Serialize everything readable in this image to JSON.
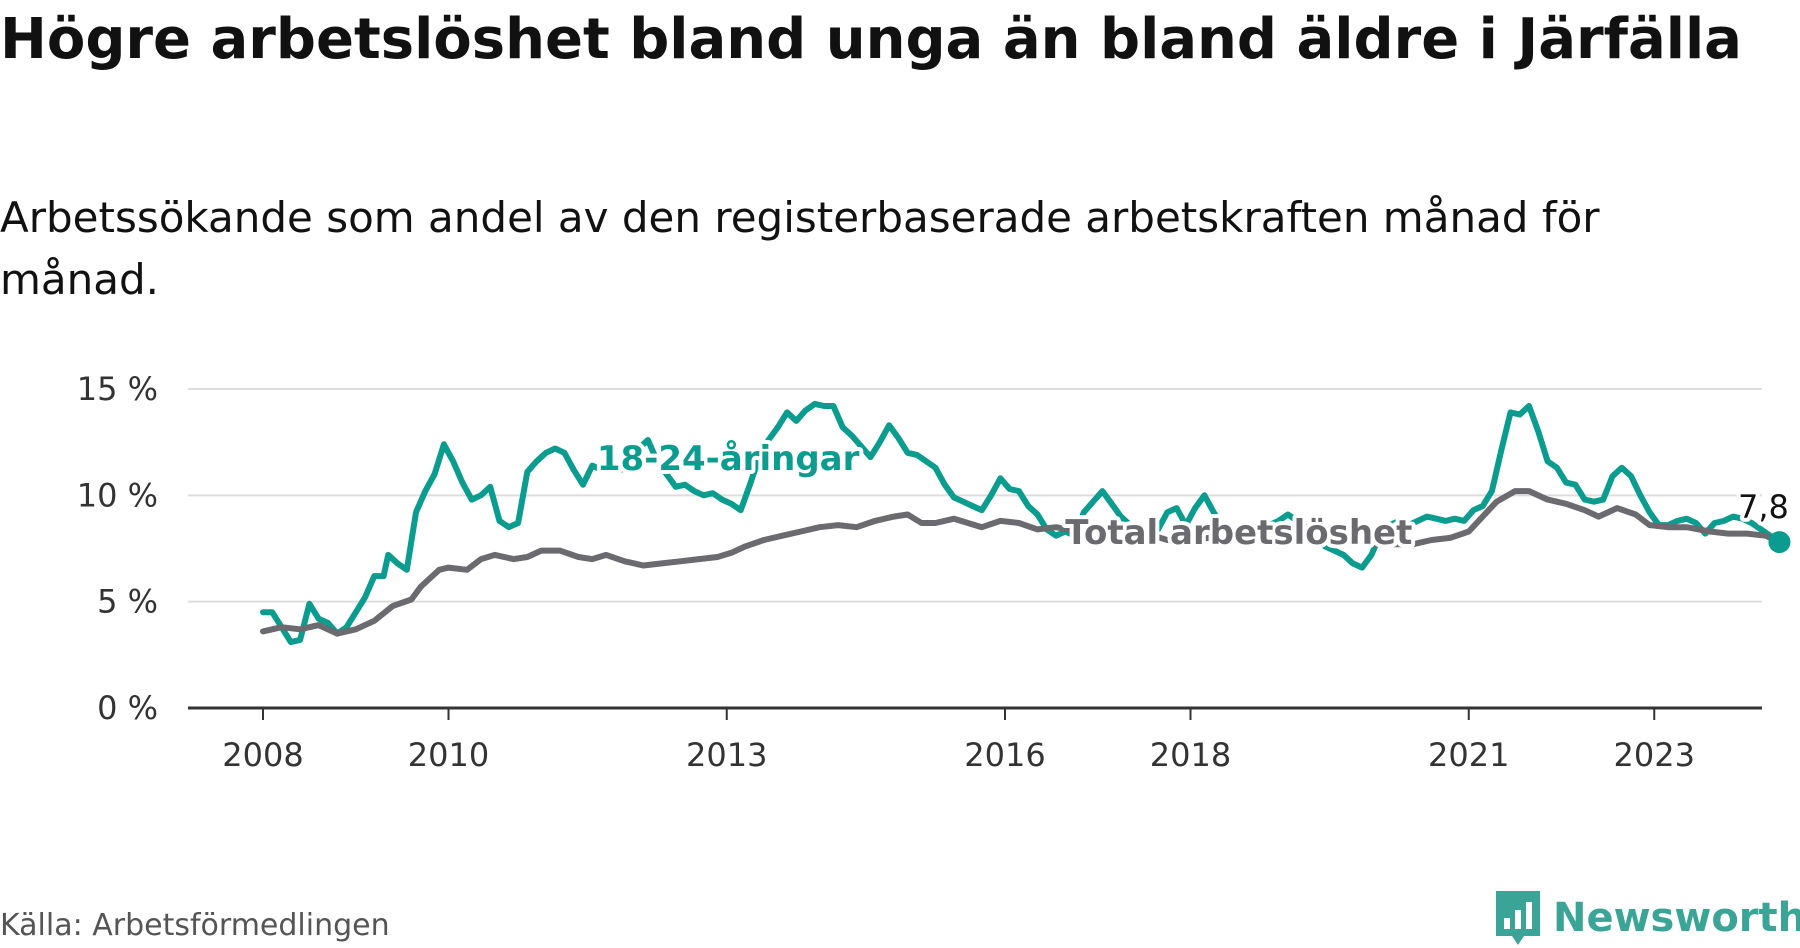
{
  "title": "Högre arbetslöshet bland unga än bland äldre i Järfälla",
  "subtitle": "Arbetssökande som andel av den registerbaserade arbetskraften månad för månad.",
  "source": "Källa: Arbetsförmedlingen",
  "brand": {
    "name": "Newsworthy",
    "icon": "newsworthy-bar-chart-icon",
    "color": "#3aa596"
  },
  "chart_data": {
    "type": "line",
    "title": "Högre arbetslöshet bland unga än bland äldre i Järfälla",
    "subtitle": "Arbetssökande som andel av den registerbaserade arbetskraften månad för månad.",
    "xlabel": "",
    "ylabel": "",
    "xlim": [
      2008,
      2024.5
    ],
    "ylim": [
      0,
      15
    ],
    "y_ticks": [
      0,
      5,
      10,
      15
    ],
    "y_tick_labels": [
      "0 %",
      "5 %",
      "10 %",
      "15 %"
    ],
    "x_ticks": [
      2008,
      2010,
      2013,
      2016,
      2018,
      2021,
      2023
    ],
    "x_tick_labels": [
      "2008",
      "2010",
      "2013",
      "2016",
      "2018",
      "2021",
      "2023"
    ],
    "grid": true,
    "series": [
      {
        "name": "18-24-åringar",
        "color": "#0a9d8f",
        "label_x": 2011.6,
        "label_y": 11.2,
        "points": [
          [
            2008,
            4.5
          ],
          [
            2008.1,
            4.5
          ],
          [
            2008.2,
            3.8
          ],
          [
            2008.3,
            3.1
          ],
          [
            2008.4,
            3.2
          ],
          [
            2008.5,
            4.9
          ],
          [
            2008.6,
            4.2
          ],
          [
            2008.7,
            4.0
          ],
          [
            2008.8,
            3.5
          ],
          [
            2008.9,
            3.8
          ],
          [
            2009.0,
            4.5
          ],
          [
            2009.1,
            5.2
          ],
          [
            2009.2,
            6.2
          ],
          [
            2009.3,
            6.2
          ],
          [
            2009.35,
            7.2
          ],
          [
            2009.45,
            6.8
          ],
          [
            2009.55,
            6.5
          ],
          [
            2009.65,
            9.2
          ],
          [
            2009.75,
            10.2
          ],
          [
            2009.85,
            11.0
          ],
          [
            2009.95,
            12.4
          ],
          [
            2010.05,
            11.6
          ],
          [
            2010.15,
            10.6
          ],
          [
            2010.25,
            9.8
          ],
          [
            2010.35,
            10.0
          ],
          [
            2010.45,
            10.4
          ],
          [
            2010.55,
            8.8
          ],
          [
            2010.65,
            8.5
          ],
          [
            2010.75,
            8.7
          ],
          [
            2010.85,
            11.1
          ],
          [
            2010.95,
            11.6
          ],
          [
            2011.05,
            12.0
          ],
          [
            2011.15,
            12.2
          ],
          [
            2011.25,
            12.0
          ],
          [
            2011.35,
            11.2
          ],
          [
            2011.45,
            10.5
          ],
          [
            2011.55,
            11.4
          ],
          [
            2011.65,
            11.2
          ],
          [
            2011.75,
            11.4
          ],
          [
            2011.85,
            11.2
          ],
          [
            2011.95,
            11.3
          ],
          [
            2012.05,
            12.2
          ],
          [
            2012.15,
            12.6
          ],
          [
            2012.25,
            11.6
          ],
          [
            2012.35,
            11.0
          ],
          [
            2012.45,
            10.4
          ],
          [
            2012.55,
            10.5
          ],
          [
            2012.65,
            10.2
          ],
          [
            2012.75,
            10.0
          ],
          [
            2012.85,
            10.1
          ],
          [
            2012.95,
            9.8
          ],
          [
            2013.05,
            9.6
          ],
          [
            2013.15,
            9.3
          ],
          [
            2013.25,
            10.5
          ],
          [
            2013.35,
            11.8
          ],
          [
            2013.45,
            12.6
          ],
          [
            2013.55,
            13.2
          ],
          [
            2013.65,
            13.9
          ],
          [
            2013.75,
            13.5
          ],
          [
            2013.85,
            14.0
          ],
          [
            2013.95,
            14.3
          ],
          [
            2014.05,
            14.2
          ],
          [
            2014.15,
            14.2
          ],
          [
            2014.25,
            13.2
          ],
          [
            2014.35,
            12.8
          ],
          [
            2014.45,
            12.3
          ],
          [
            2014.55,
            11.8
          ],
          [
            2014.65,
            12.5
          ],
          [
            2014.75,
            13.3
          ],
          [
            2014.85,
            12.7
          ],
          [
            2014.95,
            12.0
          ],
          [
            2015.05,
            11.9
          ],
          [
            2015.15,
            11.6
          ],
          [
            2015.25,
            11.3
          ],
          [
            2015.35,
            10.5
          ],
          [
            2015.45,
            9.9
          ],
          [
            2015.55,
            9.7
          ],
          [
            2015.65,
            9.5
          ],
          [
            2015.75,
            9.3
          ],
          [
            2015.85,
            10.0
          ],
          [
            2015.95,
            10.8
          ],
          [
            2016.05,
            10.3
          ],
          [
            2016.15,
            10.2
          ],
          [
            2016.25,
            9.5
          ],
          [
            2016.35,
            9.1
          ],
          [
            2016.45,
            8.4
          ],
          [
            2016.55,
            8.1
          ],
          [
            2016.65,
            8.3
          ],
          [
            2016.75,
            8.1
          ],
          [
            2016.85,
            9.2
          ],
          [
            2016.95,
            9.7
          ],
          [
            2017.05,
            10.2
          ],
          [
            2017.15,
            9.6
          ],
          [
            2017.25,
            9.0
          ],
          [
            2017.35,
            8.6
          ],
          [
            2017.45,
            8.6
          ],
          [
            2017.55,
            8.3
          ],
          [
            2017.65,
            8.4
          ],
          [
            2017.75,
            9.2
          ],
          [
            2017.85,
            9.4
          ],
          [
            2017.95,
            8.6
          ],
          [
            2018.05,
            9.4
          ],
          [
            2018.15,
            10.0
          ],
          [
            2018.25,
            9.2
          ],
          [
            2018.35,
            8.5
          ],
          [
            2018.45,
            8.2
          ],
          [
            2018.55,
            8.3
          ],
          [
            2018.65,
            8.0
          ],
          [
            2018.75,
            8.2
          ],
          [
            2018.85,
            8.6
          ],
          [
            2018.95,
            8.8
          ],
          [
            2019.05,
            9.1
          ],
          [
            2019.15,
            8.8
          ],
          [
            2019.25,
            8.5
          ],
          [
            2019.35,
            8.0
          ],
          [
            2019.45,
            7.6
          ],
          [
            2019.55,
            7.4
          ],
          [
            2019.65,
            7.2
          ],
          [
            2019.75,
            6.8
          ],
          [
            2019.85,
            6.6
          ],
          [
            2019.95,
            7.2
          ],
          [
            2020.05,
            8.2
          ],
          [
            2020.15,
            8.6
          ],
          [
            2020.25,
            8.8
          ],
          [
            2020.35,
            8.6
          ],
          [
            2020.45,
            8.8
          ],
          [
            2020.55,
            9.0
          ],
          [
            2020.65,
            8.9
          ],
          [
            2020.75,
            8.8
          ],
          [
            2020.85,
            8.9
          ],
          [
            2020.95,
            8.8
          ],
          [
            2021.05,
            9.3
          ],
          [
            2021.15,
            9.5
          ],
          [
            2021.25,
            10.2
          ],
          [
            2021.35,
            12.1
          ],
          [
            2021.45,
            13.9
          ],
          [
            2021.55,
            13.8
          ],
          [
            2021.65,
            14.2
          ],
          [
            2021.75,
            13.0
          ],
          [
            2021.85,
            11.6
          ],
          [
            2021.95,
            11.3
          ],
          [
            2022.05,
            10.6
          ],
          [
            2022.15,
            10.5
          ],
          [
            2022.25,
            9.8
          ],
          [
            2022.35,
            9.7
          ],
          [
            2022.45,
            9.8
          ],
          [
            2022.55,
            10.9
          ],
          [
            2022.65,
            11.3
          ],
          [
            2022.75,
            10.9
          ],
          [
            2022.85,
            10.0
          ],
          [
            2022.95,
            9.2
          ],
          [
            2023.05,
            8.6
          ],
          [
            2023.15,
            8.6
          ],
          [
            2023.25,
            8.8
          ],
          [
            2023.35,
            8.9
          ],
          [
            2023.45,
            8.7
          ],
          [
            2023.55,
            8.2
          ],
          [
            2023.65,
            8.7
          ],
          [
            2023.75,
            8.8
          ],
          [
            2023.85,
            9.0
          ],
          [
            2023.95,
            8.9
          ],
          [
            2024.05,
            8.7
          ],
          [
            2024.15,
            8.4
          ],
          [
            2024.25,
            8.1
          ],
          [
            2024.35,
            7.8
          ]
        ]
      },
      {
        "name": "Total arbetslöshet",
        "color": "#6a6a6f",
        "label_x": 2016.65,
        "label_y": 7.7,
        "points": [
          [
            2008,
            3.6
          ],
          [
            2008.2,
            3.8
          ],
          [
            2008.4,
            3.7
          ],
          [
            2008.6,
            3.9
          ],
          [
            2008.8,
            3.5
          ],
          [
            2009.0,
            3.7
          ],
          [
            2009.2,
            4.1
          ],
          [
            2009.4,
            4.8
          ],
          [
            2009.6,
            5.1
          ],
          [
            2009.7,
            5.7
          ],
          [
            2009.9,
            6.5
          ],
          [
            2010.0,
            6.6
          ],
          [
            2010.2,
            6.5
          ],
          [
            2010.35,
            7.0
          ],
          [
            2010.5,
            7.2
          ],
          [
            2010.7,
            7.0
          ],
          [
            2010.85,
            7.1
          ],
          [
            2011.0,
            7.4
          ],
          [
            2011.2,
            7.4
          ],
          [
            2011.4,
            7.1
          ],
          [
            2011.55,
            7.0
          ],
          [
            2011.7,
            7.2
          ],
          [
            2011.9,
            6.9
          ],
          [
            2012.1,
            6.7
          ],
          [
            2012.3,
            6.8
          ],
          [
            2012.5,
            6.9
          ],
          [
            2012.7,
            7.0
          ],
          [
            2012.9,
            7.1
          ],
          [
            2013.05,
            7.3
          ],
          [
            2013.2,
            7.6
          ],
          [
            2013.4,
            7.9
          ],
          [
            2013.6,
            8.1
          ],
          [
            2013.8,
            8.3
          ],
          [
            2014.0,
            8.5
          ],
          [
            2014.2,
            8.6
          ],
          [
            2014.4,
            8.5
          ],
          [
            2014.6,
            8.8
          ],
          [
            2014.8,
            9.0
          ],
          [
            2014.95,
            9.1
          ],
          [
            2015.1,
            8.7
          ],
          [
            2015.25,
            8.7
          ],
          [
            2015.45,
            8.9
          ],
          [
            2015.6,
            8.7
          ],
          [
            2015.75,
            8.5
          ],
          [
            2015.95,
            8.8
          ],
          [
            2016.15,
            8.7
          ],
          [
            2016.35,
            8.4
          ],
          [
            2016.55,
            8.5
          ],
          [
            2016.8,
            8.3
          ],
          [
            2017.0,
            8.4
          ],
          [
            2017.2,
            8.6
          ],
          [
            2017.4,
            8.4
          ],
          [
            2017.6,
            8.1
          ],
          [
            2017.75,
            7.9
          ],
          [
            2018.0,
            7.9
          ],
          [
            2018.2,
            8.0
          ],
          [
            2018.4,
            7.9
          ],
          [
            2018.6,
            7.9
          ],
          [
            2018.8,
            7.8
          ],
          [
            2019.0,
            7.8
          ],
          [
            2019.2,
            7.8
          ],
          [
            2019.4,
            7.9
          ],
          [
            2019.6,
            7.9
          ],
          [
            2019.8,
            7.8
          ],
          [
            2020.0,
            7.7
          ],
          [
            2020.2,
            7.7
          ],
          [
            2020.4,
            7.7
          ],
          [
            2020.6,
            7.9
          ],
          [
            2020.8,
            8.0
          ],
          [
            2021.0,
            8.3
          ],
          [
            2021.15,
            9.0
          ],
          [
            2021.3,
            9.7
          ],
          [
            2021.5,
            10.2
          ],
          [
            2021.65,
            10.2
          ],
          [
            2021.85,
            9.8
          ],
          [
            2022.05,
            9.6
          ],
          [
            2022.25,
            9.3
          ],
          [
            2022.4,
            9.0
          ],
          [
            2022.6,
            9.4
          ],
          [
            2022.8,
            9.1
          ],
          [
            2022.95,
            8.6
          ],
          [
            2023.15,
            8.5
          ],
          [
            2023.35,
            8.5
          ],
          [
            2023.6,
            8.3
          ],
          [
            2023.8,
            8.2
          ],
          [
            2024.0,
            8.2
          ],
          [
            2024.2,
            8.1
          ],
          [
            2024.35,
            7.8
          ]
        ]
      }
    ],
    "end_point": {
      "x": 2024.35,
      "y": 7.8,
      "label": "7,8 %"
    }
  }
}
